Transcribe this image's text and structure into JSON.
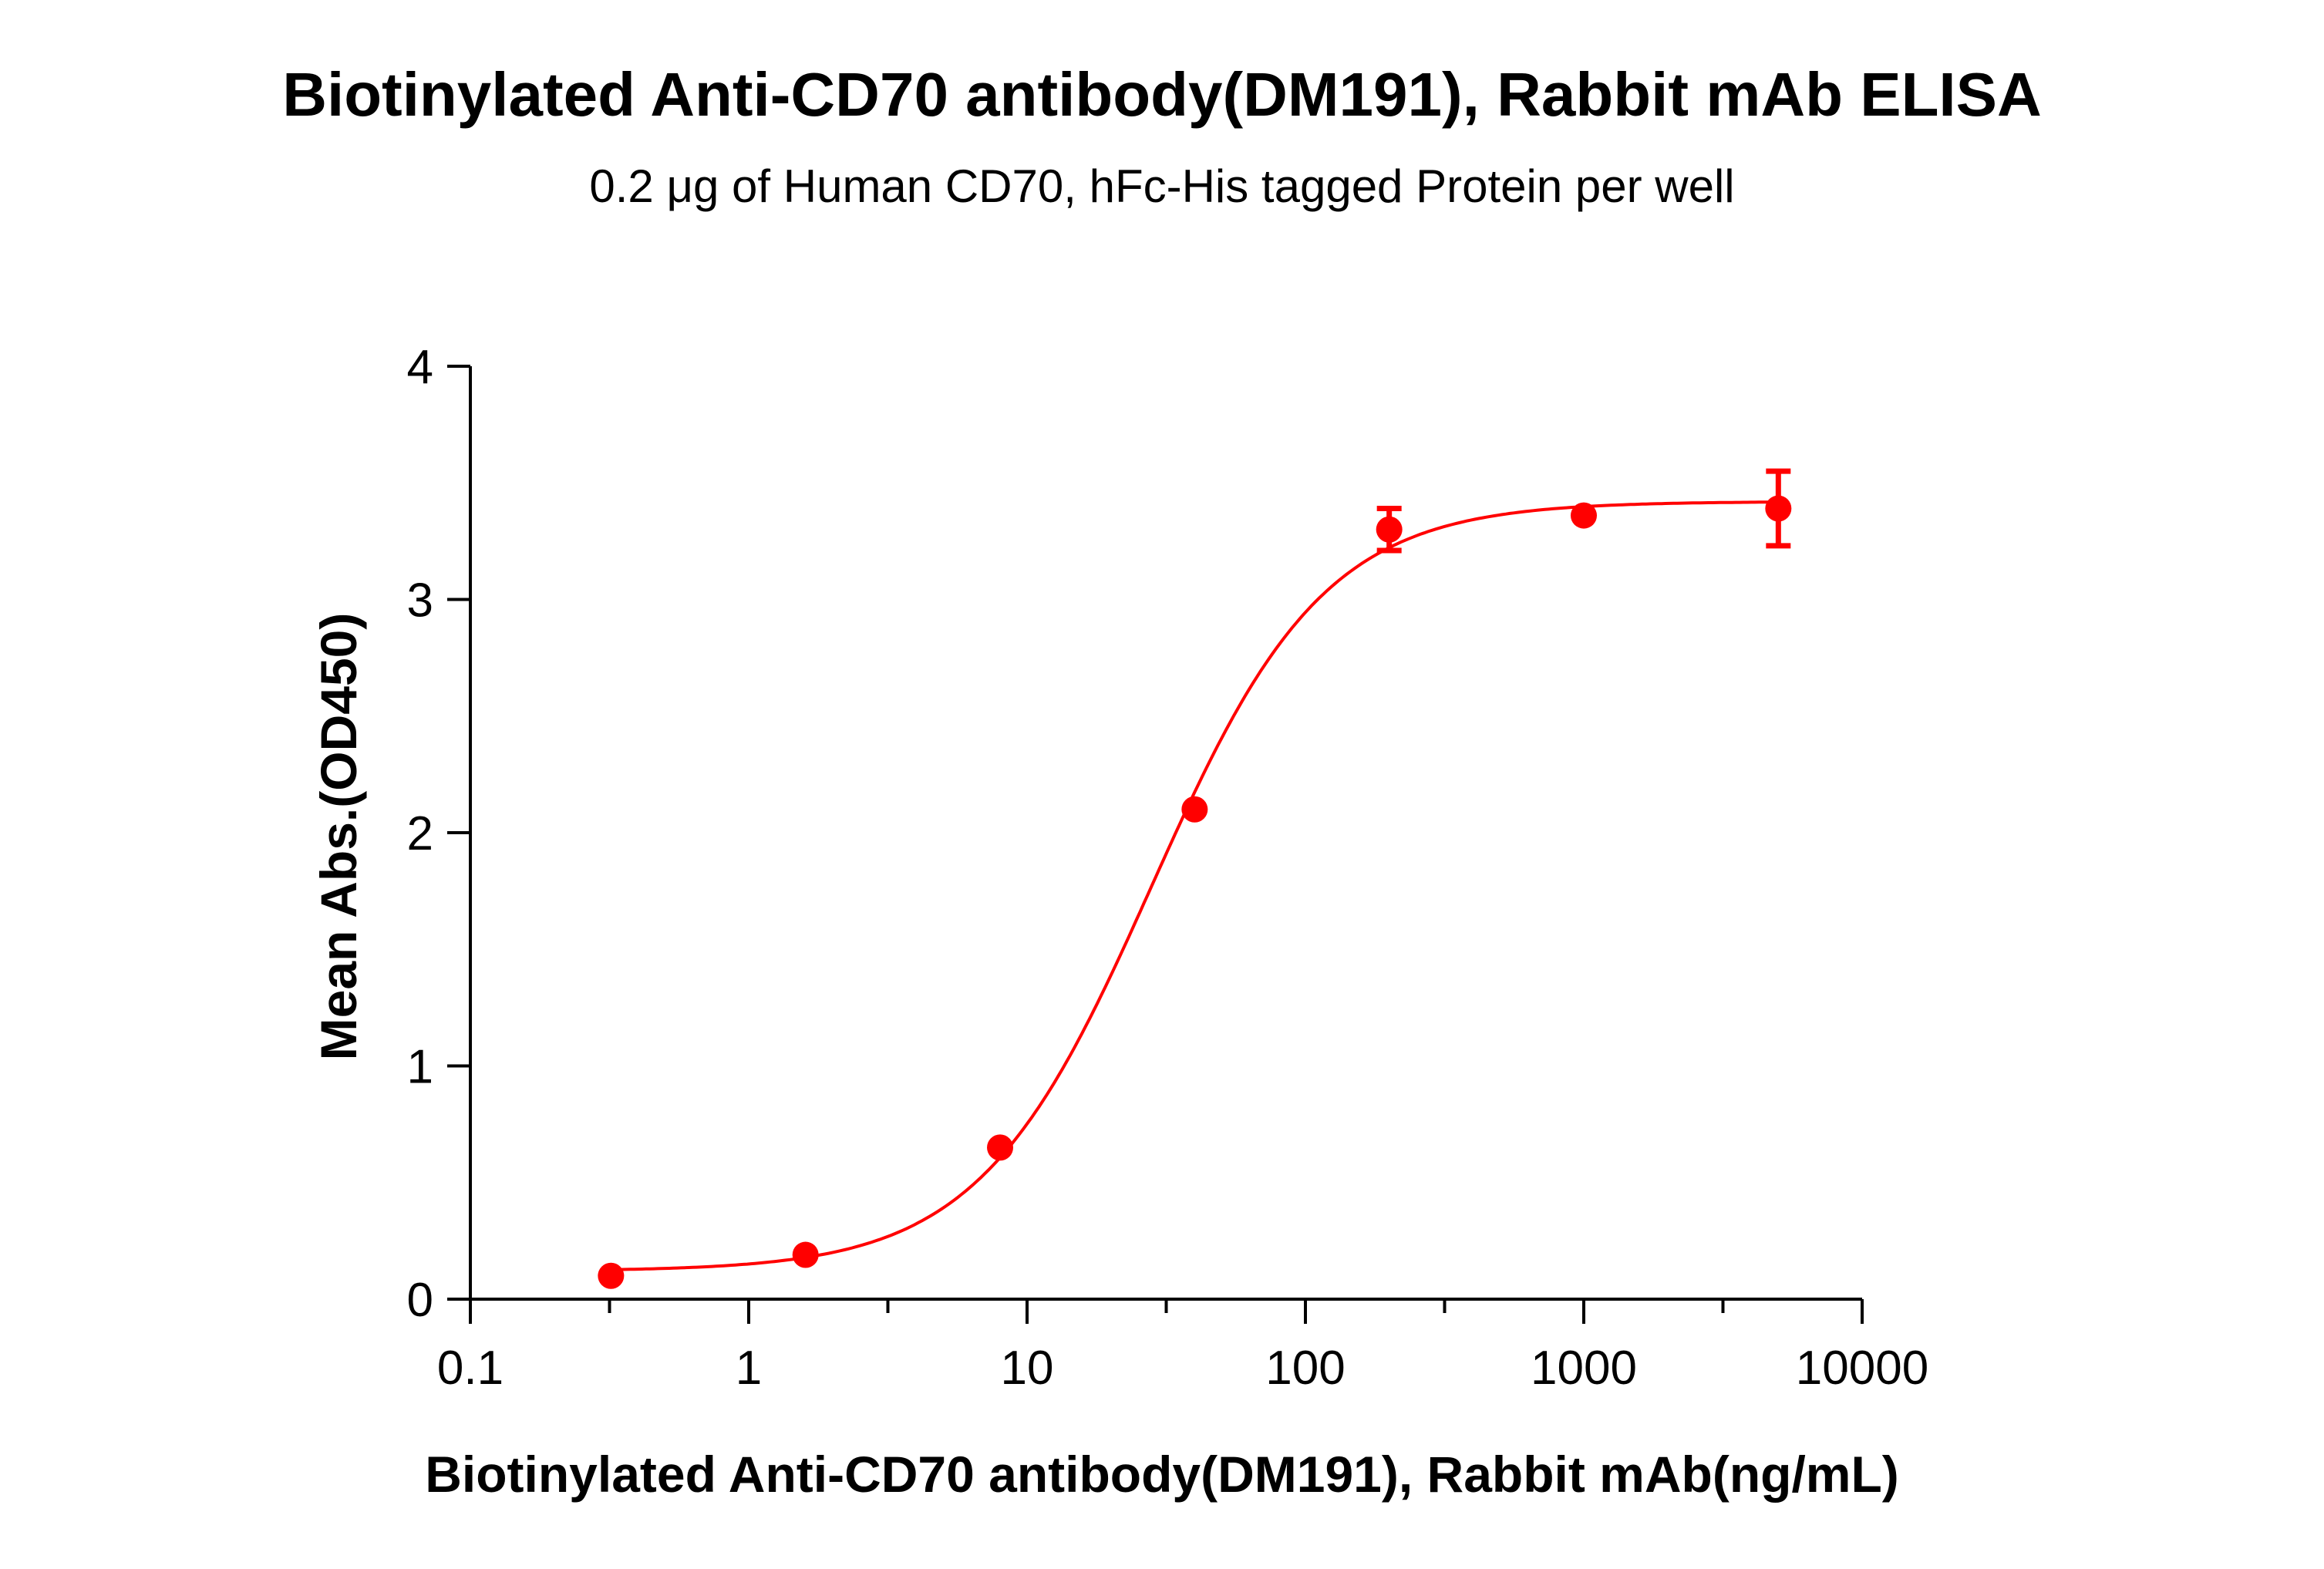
{
  "chart_data": {
    "type": "scatter",
    "title": "Biotinylated Anti-CD70 antibody(DM191), Rabbit mAb ELISA",
    "subtitle": "0.2 μg of Human CD70, hFc-His tagged Protein per well",
    "xlabel": "Biotinylated Anti-CD70 antibody(DM191), Rabbit mAb(ng/mL)",
    "ylabel": "Mean Abs.(OD450)",
    "xscale": "log",
    "xlim": [
      0.1,
      10000
    ],
    "ylim": [
      0,
      4
    ],
    "xticks": [
      "0.1",
      "1",
      "10",
      "100",
      "1000",
      "10000"
    ],
    "yticks": [
      "0",
      "1",
      "2",
      "3",
      "4"
    ],
    "grid": false,
    "legend": "none",
    "series": [
      {
        "color": "#ff0000",
        "x": [
          0.32,
          1.6,
          8,
          40,
          200,
          1000,
          5000
        ],
        "y": [
          0.1,
          0.19,
          0.65,
          2.1,
          3.3,
          3.36,
          3.39
        ],
        "error": [
          0,
          0,
          0,
          0,
          0.09,
          0,
          0.16
        ],
        "fit": {
          "model": "4PL",
          "bottom": 0.12,
          "top": 3.42,
          "ec50": 28,
          "hill": 1.4
        }
      }
    ]
  }
}
